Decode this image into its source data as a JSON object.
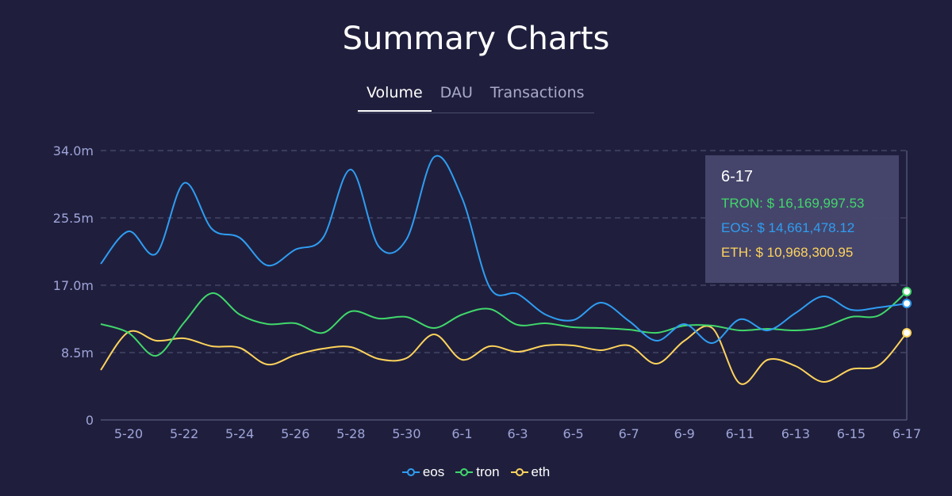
{
  "title": "Summary Charts",
  "tabs": [
    {
      "label": "Volume",
      "active": true
    },
    {
      "label": "DAU",
      "active": false
    },
    {
      "label": "Transactions",
      "active": false
    }
  ],
  "tooltip": {
    "date": "6-17",
    "lines": [
      {
        "label": "TRON: $ 16,169,997.53",
        "color": "#41d86b"
      },
      {
        "label": "EOS: $ 14,661,478.12",
        "color": "#2f9df2"
      },
      {
        "label": "ETH: $ 10,968,300.95",
        "color": "#ffd35c"
      }
    ]
  },
  "chart_data": {
    "type": "line",
    "title": "Summary Charts",
    "xlabel": "",
    "ylabel": "",
    "x": [
      "5-19",
      "5-20",
      "5-21",
      "5-22",
      "5-23",
      "5-24",
      "5-25",
      "5-26",
      "5-27",
      "5-28",
      "5-29",
      "5-30",
      "5-31",
      "6-1",
      "6-2",
      "6-3",
      "6-4",
      "6-5",
      "6-6",
      "6-7",
      "6-8",
      "6-9",
      "6-10",
      "6-11",
      "6-12",
      "6-13",
      "6-14",
      "6-15",
      "6-16",
      "6-17"
    ],
    "x_tick_labels": [
      "5-20",
      "5-22",
      "5-24",
      "5-26",
      "5-28",
      "5-30",
      "6-1",
      "6-3",
      "6-5",
      "6-7",
      "6-9",
      "6-11",
      "6-13",
      "6-15",
      "6-17"
    ],
    "y_ticks": [
      0,
      8.5,
      17.0,
      25.5,
      34.0
    ],
    "y_tick_labels": [
      "0",
      "8.5m",
      "17.0m",
      "25.5m",
      "34.0m"
    ],
    "ylim": [
      0,
      34.0
    ],
    "grid": true,
    "series": [
      {
        "name": "eos",
        "color": "#2f9df2",
        "values": [
          19.7,
          23.8,
          21.0,
          29.9,
          24.1,
          23.0,
          19.5,
          21.5,
          23.0,
          31.6,
          21.9,
          22.8,
          33.2,
          28.0,
          16.7,
          15.9,
          13.3,
          12.6,
          14.8,
          12.5,
          10.0,
          12.1,
          9.7,
          12.7,
          11.3,
          13.5,
          15.6,
          13.9,
          14.2,
          14.7
        ]
      },
      {
        "name": "tron",
        "color": "#41d86b",
        "values": [
          12.1,
          11.0,
          8.1,
          12.3,
          16.0,
          13.3,
          12.1,
          12.2,
          11.0,
          13.7,
          12.8,
          13.0,
          11.6,
          13.3,
          14.0,
          12.0,
          12.2,
          11.7,
          11.6,
          11.4,
          11.0,
          11.9,
          11.9,
          11.3,
          11.5,
          11.3,
          11.7,
          13.0,
          13.2,
          16.2
        ]
      },
      {
        "name": "eth",
        "color": "#ffd35c",
        "values": [
          6.3,
          11.1,
          10.0,
          10.3,
          9.3,
          9.1,
          7.0,
          8.2,
          9.0,
          9.2,
          7.7,
          7.8,
          10.8,
          7.6,
          9.3,
          8.6,
          9.4,
          9.4,
          8.8,
          9.4,
          7.1,
          10.0,
          11.6,
          4.6,
          7.6,
          6.8,
          4.8,
          6.4,
          6.9,
          11.0
        ]
      }
    ],
    "legend_position": "bottom-center",
    "highlight_x": "6-17"
  }
}
